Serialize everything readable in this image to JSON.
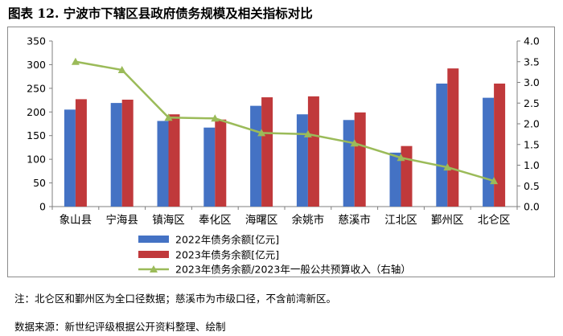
{
  "figure_title": "图表 12. 宁波市下辖区县政府债务规模及相关指标对比",
  "note": "注：北仑区和鄞州区为全口径数据；慈溪市为市级口径，不含前湾新区。",
  "source": "数据来源：新世纪评级根据公开资料整理、绘制",
  "colors": {
    "bar_2022": "#4472C4",
    "bar_2023": "#C0393B",
    "line": "#9BBB59"
  },
  "chart_data": {
    "type": "bar+line",
    "title": "",
    "categories": [
      "象山县",
      "宁海县",
      "镇海区",
      "奉化区",
      "海曙区",
      "余姚市",
      "慈溪市",
      "江北区",
      "鄞州区",
      "北仑区"
    ],
    "series": [
      {
        "name": "2022年债务余额[亿元]",
        "axis": "left",
        "type": "bar",
        "values": [
          205,
          219,
          181,
          167,
          213,
          195,
          183,
          114,
          260,
          230
        ]
      },
      {
        "name": "2023年债务余额[亿元]",
        "axis": "left",
        "type": "bar",
        "values": [
          227,
          226,
          195,
          184,
          231,
          233,
          199,
          128,
          292,
          260
        ]
      },
      {
        "name": "2023年债务余额/2023年一般公共预算收入（右轴）",
        "axis": "right",
        "type": "line",
        "values": [
          3.5,
          3.3,
          2.15,
          2.13,
          1.78,
          1.75,
          1.53,
          1.18,
          0.95,
          0.62
        ]
      }
    ],
    "left_axis": {
      "min": 0,
      "max": 350,
      "ticks": [
        "0",
        "50",
        "100",
        "150",
        "200",
        "250",
        "300",
        "350"
      ]
    },
    "right_axis": {
      "min": 0,
      "max": 4.0,
      "ticks": [
        "0.0",
        "0.5",
        "1.0",
        "1.5",
        "2.0",
        "2.5",
        "3.0",
        "3.5",
        "4.0"
      ]
    },
    "grid": false,
    "legend_position": "bottom"
  }
}
